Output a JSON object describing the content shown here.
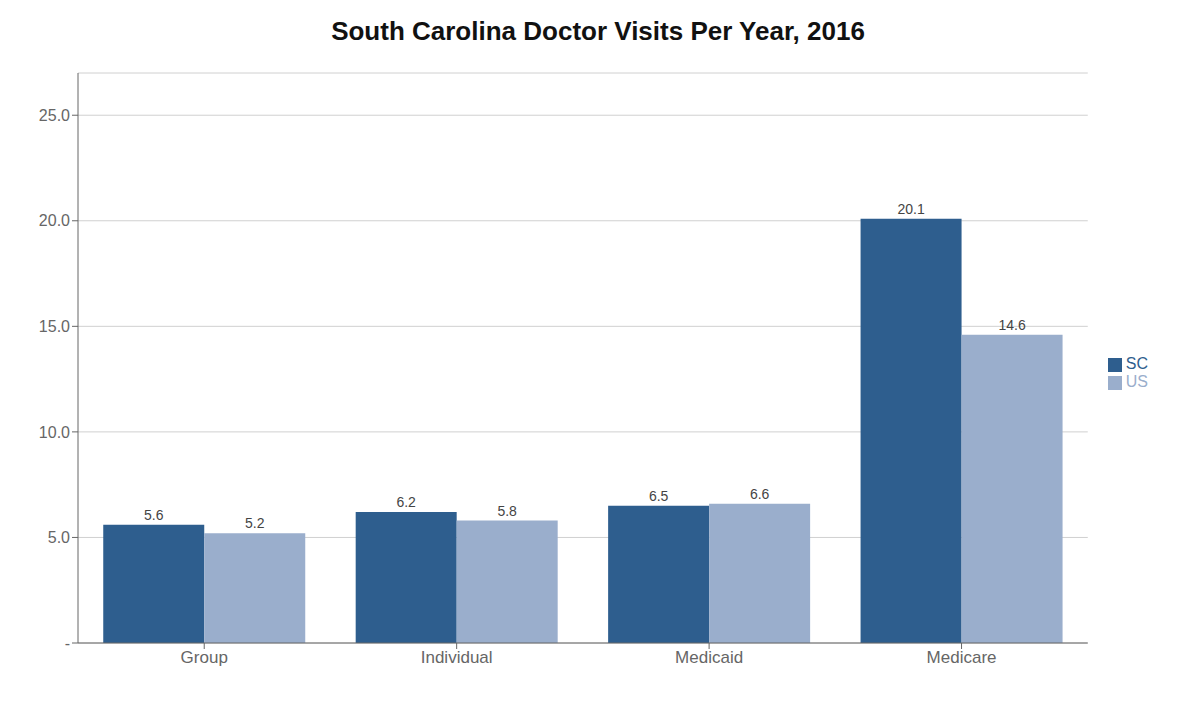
{
  "chart_data": {
    "type": "bar",
    "title": "South Carolina Doctor Visits Per Year, 2016",
    "categories": [
      "Group",
      "Individual",
      "Medicaid",
      "Medicare"
    ],
    "series": [
      {
        "name": "SC",
        "color": "#2E5E8E",
        "values": [
          5.6,
          6.2,
          6.5,
          20.1
        ]
      },
      {
        "name": "US",
        "color": "#9AAECC",
        "values": [
          5.2,
          5.8,
          6.6,
          14.6
        ]
      }
    ],
    "ylim": [
      0,
      27
    ],
    "yticks": [
      {
        "value": 0,
        "label": "-"
      },
      {
        "value": 5.0,
        "label": "5.0"
      },
      {
        "value": 10.0,
        "label": "10.0"
      },
      {
        "value": 15.0,
        "label": "15.0"
      },
      {
        "value": 20.0,
        "label": "20.0"
      },
      {
        "value": 25.0,
        "label": "25.0"
      }
    ],
    "grid": true,
    "legend": "right",
    "data_labels": true
  }
}
